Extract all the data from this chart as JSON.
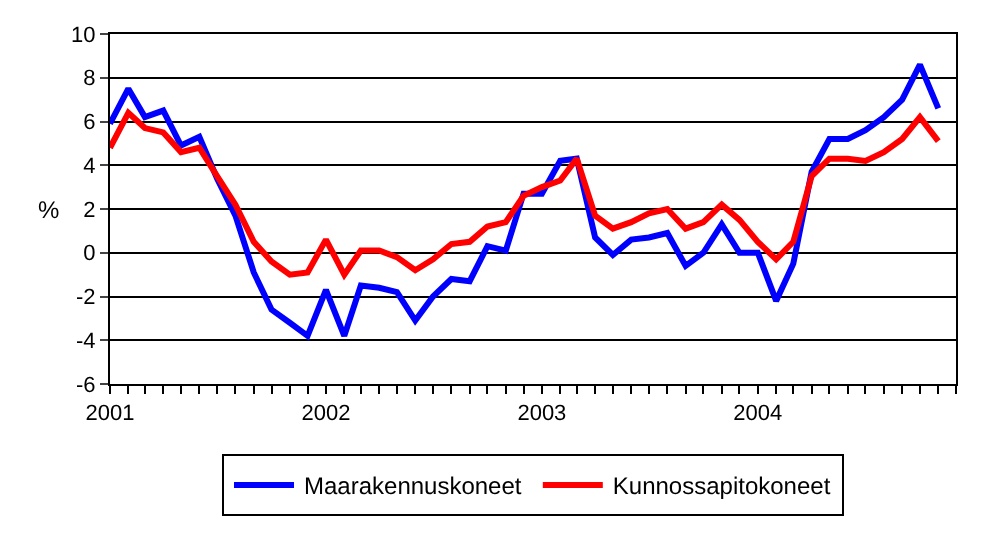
{
  "chart_data": {
    "type": "line",
    "ylabel": "%",
    "x": [
      "2001-01",
      "2001-02",
      "2001-03",
      "2001-04",
      "2001-05",
      "2001-06",
      "2001-07",
      "2001-08",
      "2001-09",
      "2001-10",
      "2001-11",
      "2001-12",
      "2002-01",
      "2002-02",
      "2002-03",
      "2002-04",
      "2002-05",
      "2002-06",
      "2002-07",
      "2002-08",
      "2002-09",
      "2002-10",
      "2002-11",
      "2002-12",
      "2003-01",
      "2003-02",
      "2003-03",
      "2003-04",
      "2003-05",
      "2003-06",
      "2003-07",
      "2003-08",
      "2003-09",
      "2003-10",
      "2003-11",
      "2003-12",
      "2004-01",
      "2004-02",
      "2004-03",
      "2004-04",
      "2004-05",
      "2004-06",
      "2004-07",
      "2004-08",
      "2004-09",
      "2004-10",
      "2004-11"
    ],
    "series": [
      {
        "name": "Maarakennuskoneet",
        "color": "#0000ff",
        "values": [
          5.9,
          7.5,
          6.2,
          6.5,
          4.9,
          5.3,
          3.4,
          1.7,
          -0.9,
          -2.6,
          -3.2,
          -3.8,
          -1.7,
          -3.8,
          -1.5,
          -1.6,
          -1.8,
          -3.1,
          -2.0,
          -1.2,
          -1.3,
          0.3,
          0.1,
          2.7,
          2.7,
          4.2,
          4.3,
          0.7,
          -0.1,
          0.6,
          0.7,
          0.9,
          -0.6,
          0.0,
          1.3,
          0.0,
          0.0,
          -2.2,
          -0.5,
          3.7,
          5.2,
          5.2,
          5.6,
          6.2,
          7.0,
          8.6,
          6.6
        ]
      },
      {
        "name": "Kunnossapitokoneet",
        "color": "#ff0000",
        "values": [
          4.8,
          6.4,
          5.7,
          5.5,
          4.6,
          4.8,
          3.5,
          2.2,
          0.5,
          -0.4,
          -1.0,
          -0.9,
          0.6,
          -1.0,
          0.1,
          0.1,
          -0.2,
          -0.8,
          -0.3,
          0.4,
          0.5,
          1.2,
          1.4,
          2.6,
          3.0,
          3.3,
          4.3,
          1.7,
          1.1,
          1.4,
          1.8,
          2.0,
          1.1,
          1.4,
          2.2,
          1.5,
          0.5,
          -0.3,
          0.5,
          3.5,
          4.3,
          4.3,
          4.2,
          4.6,
          5.2,
          6.2,
          5.1
        ]
      }
    ],
    "ylim": [
      -6,
      10
    ],
    "yticks": [
      -6,
      -4,
      -2,
      0,
      2,
      4,
      6,
      8,
      10
    ],
    "xlim": [
      "2001-01",
      "2004-12"
    ],
    "xticks": [
      {
        "value": "2001-01",
        "label": "2001"
      },
      {
        "value": "2002-01",
        "label": "2002"
      },
      {
        "value": "2003-01",
        "label": "2003"
      },
      {
        "value": "2004-01",
        "label": "2004"
      }
    ],
    "grid": "y",
    "legend": "bottom",
    "marker": "none",
    "line_style": "solid"
  }
}
